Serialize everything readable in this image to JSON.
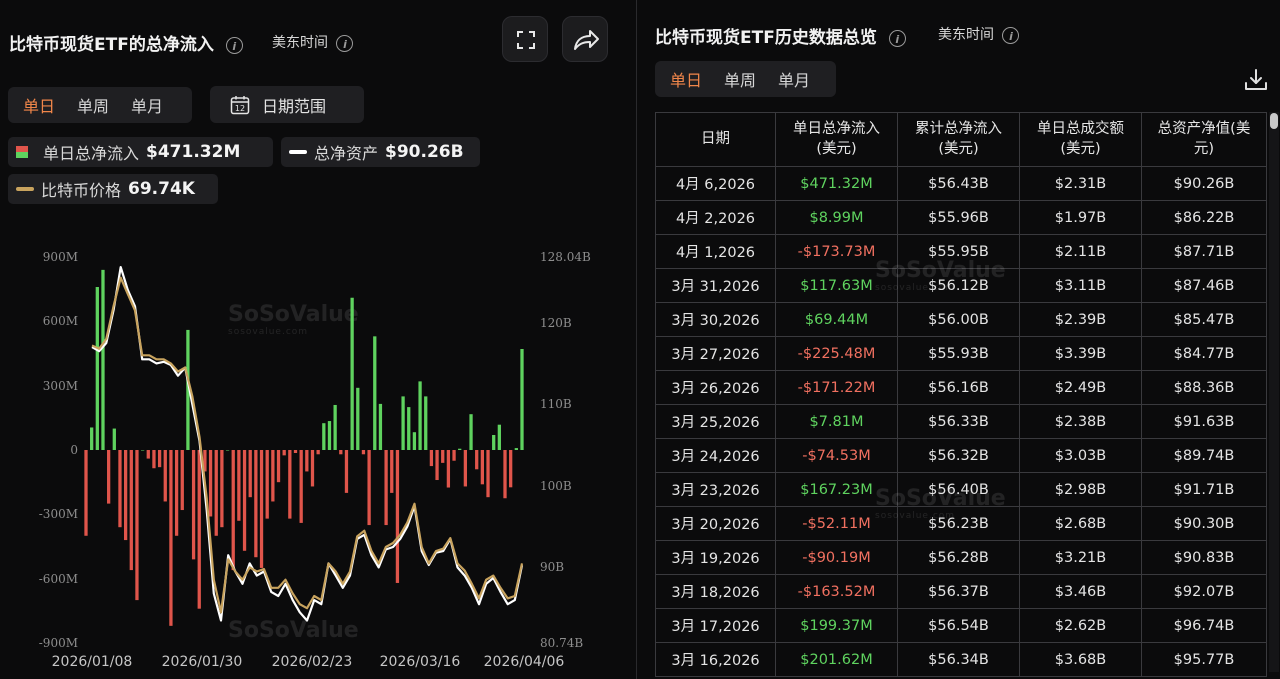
{
  "left": {
    "title": "比特币现货ETF的总净流入",
    "timezone": "美东时间",
    "tabs": [
      "单日",
      "单周",
      "单月"
    ],
    "active_tab": "单日",
    "date_range_label": "日期范围",
    "calendar_day": "12",
    "stats": {
      "daily_flow_label": "单日总净流入",
      "daily_flow_value": "$471.32M",
      "net_assets_label": "总净资产",
      "net_assets_value": "$90.26B",
      "btc_price_label": "比特币价格",
      "btc_price_value": "69.74K"
    },
    "watermark": "SoSoValue",
    "watermark_sub": "sosovalue.com"
  },
  "right": {
    "title": "比特币现货ETF历史数据总览",
    "timezone": "美东时间",
    "tabs": [
      "单日",
      "单周",
      "单月"
    ],
    "active_tab": "单日",
    "columns": [
      [
        "日期"
      ],
      [
        "单日总净流入",
        "(美元)"
      ],
      [
        "累计总净流入",
        "(美元)"
      ],
      [
        "单日总成交额",
        "(美元)"
      ],
      [
        "总资产净值(美",
        "元)"
      ]
    ],
    "rows": [
      {
        "date": "4月 6,2026",
        "flow": "$471.32M",
        "cum": "$56.43B",
        "vol": "$2.31B",
        "nav": "$90.26B"
      },
      {
        "date": "4月 2,2026",
        "flow": "$8.99M",
        "cum": "$55.96B",
        "vol": "$1.97B",
        "nav": "$86.22B"
      },
      {
        "date": "4月 1,2026",
        "flow": "-$173.73M",
        "cum": "$55.95B",
        "vol": "$2.11B",
        "nav": "$87.71B"
      },
      {
        "date": "3月 31,2026",
        "flow": "$117.63M",
        "cum": "$56.12B",
        "vol": "$3.11B",
        "nav": "$87.46B"
      },
      {
        "date": "3月 30,2026",
        "flow": "$69.44M",
        "cum": "$56.00B",
        "vol": "$2.39B",
        "nav": "$85.47B"
      },
      {
        "date": "3月 27,2026",
        "flow": "-$225.48M",
        "cum": "$55.93B",
        "vol": "$3.39B",
        "nav": "$84.77B"
      },
      {
        "date": "3月 26,2026",
        "flow": "-$171.22M",
        "cum": "$56.16B",
        "vol": "$2.49B",
        "nav": "$88.36B"
      },
      {
        "date": "3月 25,2026",
        "flow": "$7.81M",
        "cum": "$56.33B",
        "vol": "$2.38B",
        "nav": "$91.63B"
      },
      {
        "date": "3月 24,2026",
        "flow": "-$74.53M",
        "cum": "$56.32B",
        "vol": "$3.03B",
        "nav": "$89.74B"
      },
      {
        "date": "3月 23,2026",
        "flow": "$167.23M",
        "cum": "$56.40B",
        "vol": "$2.98B",
        "nav": "$91.71B"
      },
      {
        "date": "3月 20,2026",
        "flow": "-$52.11M",
        "cum": "$56.23B",
        "vol": "$2.68B",
        "nav": "$90.30B"
      },
      {
        "date": "3月 19,2026",
        "flow": "-$90.19M",
        "cum": "$56.28B",
        "vol": "$3.21B",
        "nav": "$90.83B"
      },
      {
        "date": "3月 18,2026",
        "flow": "-$163.52M",
        "cum": "$56.37B",
        "vol": "$3.46B",
        "nav": "$92.07B"
      },
      {
        "date": "3月 17,2026",
        "flow": "$199.37M",
        "cum": "$56.54B",
        "vol": "$2.62B",
        "nav": "$96.74B"
      },
      {
        "date": "3月 16,2026",
        "flow": "$201.62M",
        "cum": "$56.34B",
        "vol": "$3.68B",
        "nav": "$95.77B"
      }
    ]
  },
  "colors": {
    "inflow": "#5fd35f",
    "outflow": "#e0554b",
    "net_assets_line": "#ffffff",
    "btc_price_line": "#c8a35e",
    "accent": "#f0864a"
  },
  "chart_data": {
    "type": "bar",
    "title": "",
    "left_axis": {
      "ticks": [
        "900M",
        "600M",
        "300M",
        "0",
        "-300M",
        "-600M",
        "-900M"
      ],
      "ylim": [
        -900,
        900
      ],
      "unit": "M"
    },
    "right_axis": {
      "ticks": [
        "128.04B",
        "120B",
        "110B",
        "100B",
        "90B",
        "80.74B"
      ],
      "ylim": [
        80.74,
        128.04
      ],
      "unit": "B"
    },
    "x_ticks": [
      "2026/01/08",
      "2026/01/30",
      "2026/02/23",
      "2026/03/16",
      "2026/04/06"
    ],
    "series": [
      {
        "name": "单日总净流入",
        "kind": "bar",
        "values": [
          -400,
          105,
          760,
          840,
          -250,
          100,
          -360,
          -420,
          -560,
          -700,
          0,
          -40,
          -85,
          -80,
          -240,
          -820,
          -400,
          -280,
          560,
          -510,
          -740,
          -100,
          -310,
          -400,
          -360,
          0,
          -560,
          -330,
          -470,
          -220,
          -500,
          -550,
          -320,
          -240,
          -150,
          -25,
          -320,
          -14,
          -340,
          -100,
          -170,
          -20,
          125,
          135,
          210,
          -20,
          -200,
          710,
          290,
          -20,
          -350,
          530,
          215,
          -350,
          -200,
          -620,
          250,
          200,
          83,
          320,
          250,
          -75,
          -140,
          -60,
          -175,
          -50,
          6,
          -170,
          167,
          -90,
          -160,
          -220,
          70,
          118,
          -225,
          -174,
          9,
          471
        ]
      },
      {
        "name": "总净资产",
        "kind": "line",
        "values": [
          117,
          116.5,
          117.5,
          121.5,
          126.8,
          124,
          122,
          115.5,
          115.5,
          115,
          115.2,
          114.8,
          113.5,
          114.5,
          110,
          105.5,
          97,
          86.8,
          83.5,
          91.5,
          89.5,
          88,
          90.5,
          89,
          89.5,
          87,
          86.5,
          88,
          86,
          84.5,
          83.5,
          86,
          85.5,
          90.5,
          89,
          87.5,
          89,
          93.5,
          94,
          91.5,
          90,
          92.2,
          92.5,
          93.5,
          95,
          97.5,
          92,
          90.3,
          91.8,
          92,
          93.5,
          90,
          89,
          87.5,
          85.5,
          88,
          88.7,
          87,
          85.5,
          86,
          90.26
        ]
      },
      {
        "name": "比特币价格",
        "kind": "line",
        "values": [
          117.2,
          116.8,
          118,
          122,
          125.5,
          123.5,
          121.5,
          116,
          116,
          115.5,
          115.5,
          115,
          114,
          114.5,
          111,
          106,
          98.5,
          88.5,
          84.5,
          91,
          89.5,
          88.5,
          90,
          89.5,
          89.8,
          87.5,
          87.5,
          88.5,
          86.8,
          85.5,
          85,
          86.5,
          86,
          90.5,
          89.5,
          88,
          89.5,
          93.8,
          94.5,
          92,
          90.5,
          92.5,
          93,
          94,
          95.5,
          97.8,
          92.5,
          90.5,
          92,
          92.3,
          93.6,
          90.5,
          89.6,
          88,
          86.2,
          88.5,
          89,
          87.5,
          86.2,
          86.5,
          90.5
        ]
      }
    ],
    "legend": [
      "单日总净流入",
      "总净资产",
      "比特币价格"
    ],
    "grid": false
  }
}
